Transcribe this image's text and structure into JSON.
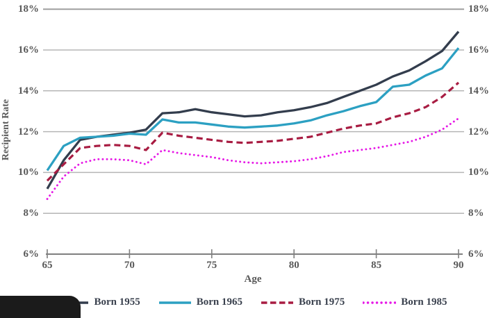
{
  "chart_data": {
    "type": "line",
    "title": "",
    "xlabel": "Age",
    "ylabel": "Recipient Rate",
    "xlim": [
      65,
      90
    ],
    "ylim": [
      6,
      18
    ],
    "grid": "horizontal",
    "legend_position": "bottom",
    "x_ticks": [
      65,
      70,
      75,
      80,
      85,
      90
    ],
    "x_tick_labels": [
      "65",
      "70",
      "75",
      "80",
      "85",
      "90"
    ],
    "y_ticks": [
      18,
      16,
      14,
      12,
      10,
      8,
      6
    ],
    "y_tick_labels": [
      "18%",
      "16%",
      "14%",
      "12%",
      "10%",
      "8%",
      "6%"
    ],
    "y_labels_both_sides": true,
    "x": [
      65,
      66,
      67,
      68,
      69,
      70,
      71,
      72,
      73,
      74,
      75,
      76,
      77,
      78,
      79,
      80,
      81,
      82,
      83,
      84,
      85,
      86,
      87,
      88,
      89,
      90
    ],
    "series": [
      {
        "name": "Born 1955",
        "style": "solid",
        "color": "#333d4d",
        "values": [
          9.2,
          10.6,
          11.6,
          11.75,
          11.85,
          11.95,
          12.1,
          12.9,
          12.95,
          13.1,
          12.95,
          12.85,
          12.75,
          12.8,
          12.95,
          13.05,
          13.2,
          13.4,
          13.7,
          14.0,
          14.3,
          14.7,
          15.0,
          15.45,
          15.95,
          16.9
        ]
      },
      {
        "name": "Born 1965",
        "style": "solid",
        "color": "#2ca0c2",
        "values": [
          10.1,
          11.3,
          11.7,
          11.75,
          11.8,
          11.9,
          11.85,
          12.6,
          12.45,
          12.45,
          12.35,
          12.25,
          12.2,
          12.25,
          12.3,
          12.4,
          12.55,
          12.8,
          13.0,
          13.25,
          13.45,
          14.2,
          14.3,
          14.75,
          15.1,
          16.1
        ]
      },
      {
        "name": "Born 1975",
        "style": "dashed",
        "color": "#a81c42",
        "values": [
          9.6,
          10.4,
          11.2,
          11.3,
          11.35,
          11.3,
          11.1,
          11.95,
          11.8,
          11.7,
          11.6,
          11.5,
          11.45,
          11.5,
          11.55,
          11.65,
          11.75,
          11.95,
          12.15,
          12.3,
          12.4,
          12.7,
          12.9,
          13.2,
          13.7,
          14.4
        ]
      },
      {
        "name": "Born 1985",
        "style": "dotted",
        "color": "#e617e6",
        "values": [
          8.7,
          9.8,
          10.45,
          10.65,
          10.65,
          10.6,
          10.4,
          11.1,
          10.95,
          10.85,
          10.75,
          10.6,
          10.5,
          10.45,
          10.5,
          10.55,
          10.65,
          10.8,
          11.0,
          11.1,
          11.2,
          11.35,
          11.5,
          11.75,
          12.1,
          12.65
        ]
      }
    ],
    "colors": {
      "gridline": "#b5b5b5",
      "top_gridline": "#9e9e9e",
      "axis": "#7f7f7f",
      "tick_label": "#595959",
      "legend_text": "#3a414e",
      "background": "#ffffff",
      "corner_overlay": "#1b1b1b"
    }
  }
}
